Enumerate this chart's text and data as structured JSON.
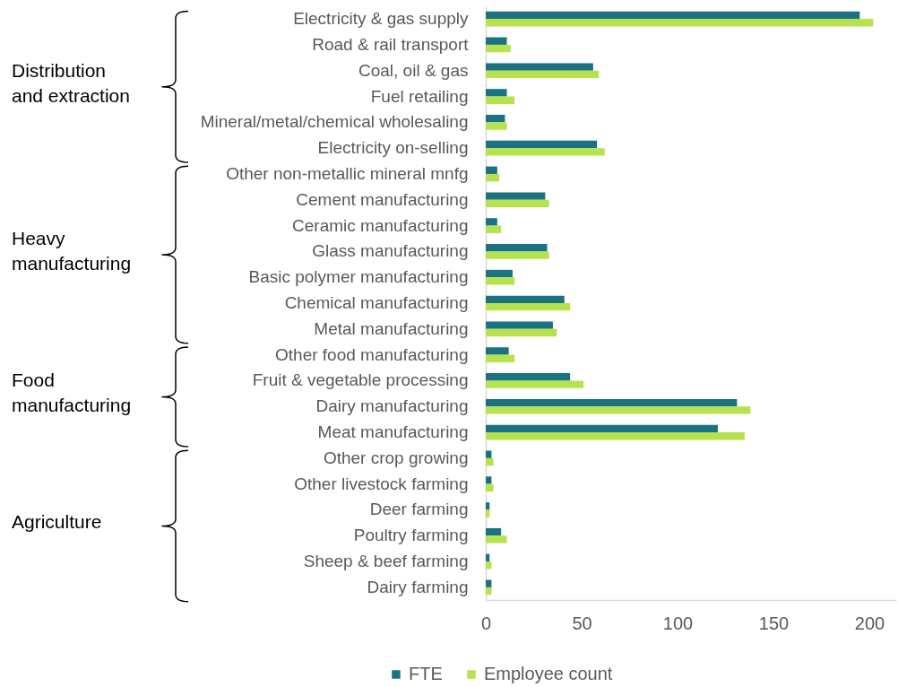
{
  "chart_data": {
    "type": "bar",
    "orientation": "horizontal",
    "categories": [
      "Electricity & gas supply",
      "Road & rail transport",
      "Coal, oil & gas",
      "Fuel retailing",
      "Mineral/metal/chemical wholesaling",
      "Electricity on-selling",
      "Other non-metallic mineral mnfg",
      "Cement manufacturing",
      "Ceramic manufacturing",
      "Glass manufacturing",
      "Basic polymer manufacturing",
      "Chemical manufacturing",
      "Metal manufacturing",
      "Other food manufacturing",
      "Fruit & vegetable processing",
      "Dairy manufacturing",
      "Meat manufacturing",
      "Other crop growing",
      "Other livestock farming",
      "Deer farming",
      "Poultry farming",
      "Sheep & beef farming",
      "Dairy farming"
    ],
    "series": [
      {
        "name": "FTE",
        "color": "#1b7381",
        "values": [
          195,
          11,
          56,
          11,
          10,
          58,
          6,
          31,
          6,
          32,
          14,
          41,
          35,
          12,
          44,
          131,
          121,
          3,
          3,
          2,
          8,
          2,
          3
        ]
      },
      {
        "name": "Employee count",
        "color": "#b6e24e",
        "values": [
          202,
          13,
          59,
          15,
          11,
          62,
          7,
          33,
          8,
          33,
          15,
          44,
          37,
          15,
          51,
          138,
          135,
          4,
          4,
          2,
          11,
          3,
          3
        ]
      }
    ],
    "xlim": [
      0,
      214
    ],
    "xticks": [
      0,
      50,
      100,
      150,
      200
    ],
    "legend": "bottom",
    "annotations": [
      "Distribution and extraction",
      "Heavy manufacturing",
      "Food manufacturing",
      "Agriculture"
    ]
  }
}
